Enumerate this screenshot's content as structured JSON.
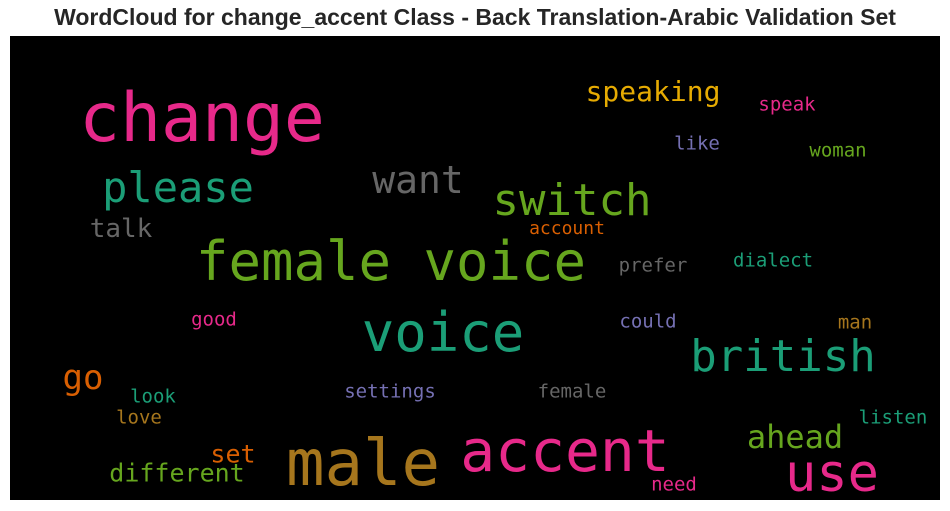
{
  "chart_data": {
    "type": "wordcloud",
    "title": "WordCloud for change_accent Class - Back Translation-Arabic Validation Set",
    "background": "#000000",
    "words": [
      {
        "text": "change",
        "color": "#e7298a"
      },
      {
        "text": "female voice",
        "color": "#66a61e"
      },
      {
        "text": "male",
        "color": "#a6761d"
      },
      {
        "text": "accent",
        "color": "#e7298a"
      },
      {
        "text": "voice",
        "color": "#1b9e77"
      },
      {
        "text": "switch",
        "color": "#66a61e"
      },
      {
        "text": "please",
        "color": "#1b9e77"
      },
      {
        "text": "british",
        "color": "#1b9e77"
      },
      {
        "text": "use",
        "color": "#e7298a"
      },
      {
        "text": "want",
        "color": "#666666"
      },
      {
        "text": "ahead",
        "color": "#66a61e"
      },
      {
        "text": "speaking",
        "color": "#e6ab02"
      },
      {
        "text": "go",
        "color": "#d95f02"
      },
      {
        "text": "talk",
        "color": "#666666"
      },
      {
        "text": "different",
        "color": "#66a61e"
      },
      {
        "text": "set",
        "color": "#d95f02"
      },
      {
        "text": "speak",
        "color": "#e7298a"
      },
      {
        "text": "like",
        "color": "#7570b3"
      },
      {
        "text": "woman",
        "color": "#66a61e"
      },
      {
        "text": "account",
        "color": "#d95f02"
      },
      {
        "text": "dialect",
        "color": "#1b9e77"
      },
      {
        "text": "prefer",
        "color": "#666666"
      },
      {
        "text": "good",
        "color": "#e7298a"
      },
      {
        "text": "could",
        "color": "#7570b3"
      },
      {
        "text": "man",
        "color": "#a6761d"
      },
      {
        "text": "settings",
        "color": "#7570b3"
      },
      {
        "text": "female",
        "color": "#666666"
      },
      {
        "text": "look",
        "color": "#1b9e77"
      },
      {
        "text": "love",
        "color": "#a6761d"
      },
      {
        "text": "listen",
        "color": "#1b9e77"
      },
      {
        "text": "need",
        "color": "#e7298a"
      }
    ]
  }
}
